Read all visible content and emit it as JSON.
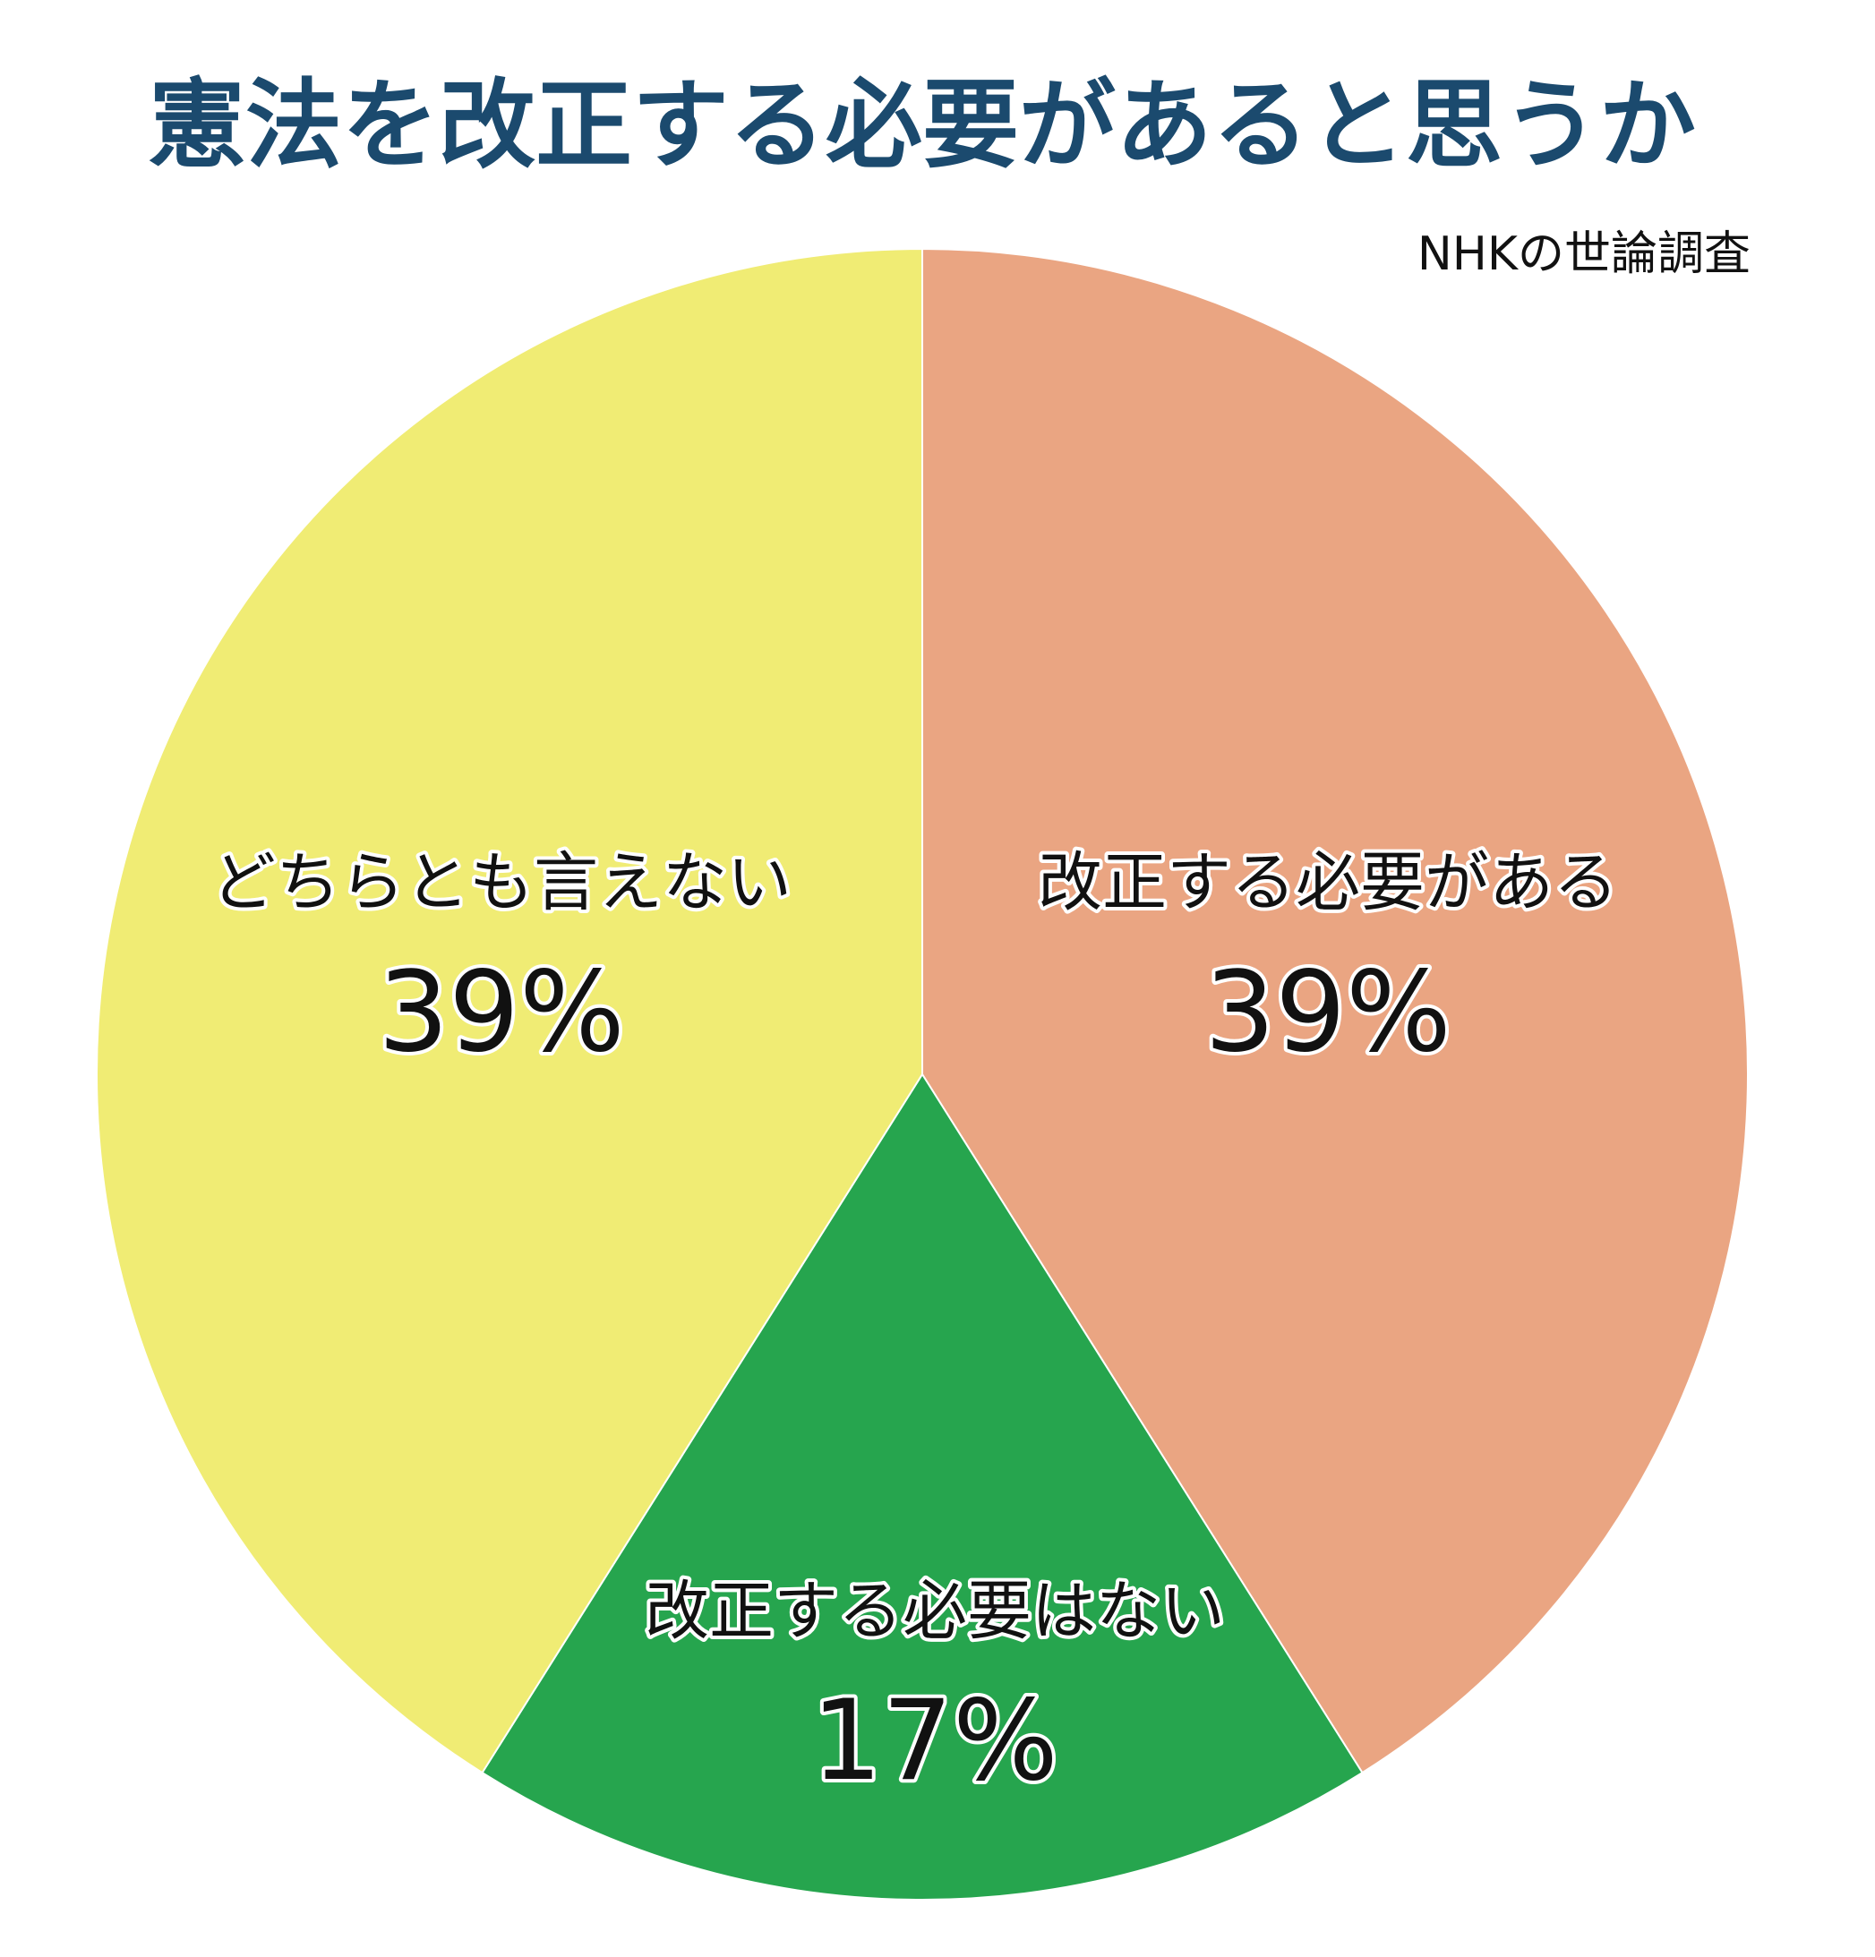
{
  "chart_data": {
    "type": "pie",
    "title": "憲法を改正する必要があると思うか",
    "subtitle": "NHKの世論調査",
    "categories": [
      "改正する必要がある",
      "改正する必要はない",
      "どちらとも言えない"
    ],
    "values": [
      39,
      17,
      39
    ],
    "value_labels": [
      "39%",
      "17%",
      "39%"
    ],
    "colors": [
      "#eaa582",
      "#26a54e",
      "#f0ec74"
    ]
  }
}
